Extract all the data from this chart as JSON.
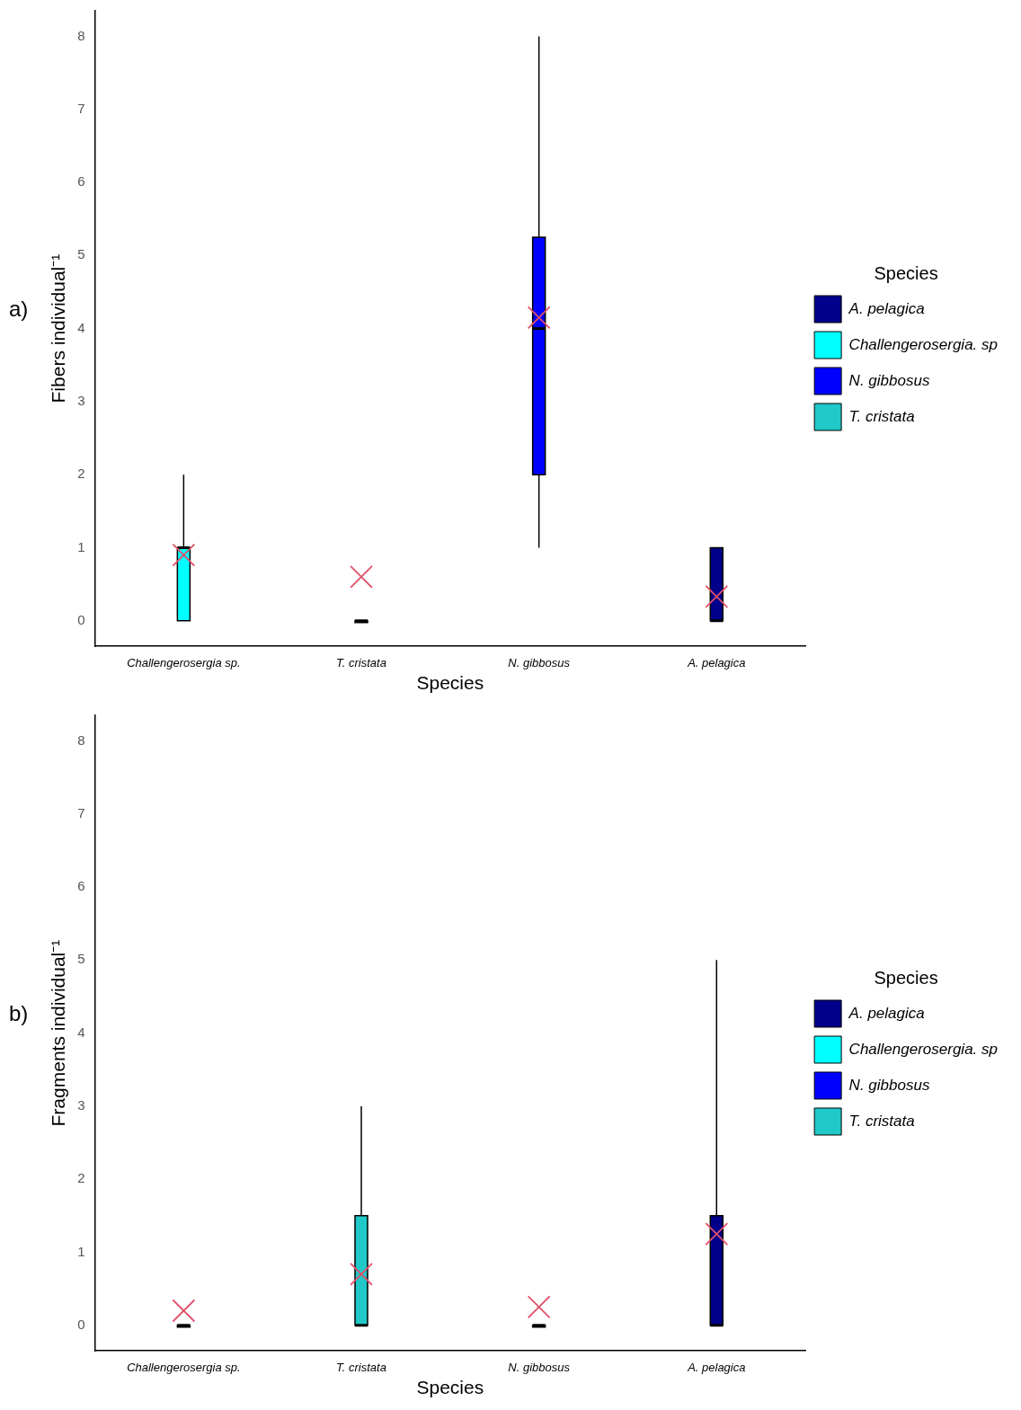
{
  "chart_data": [
    {
      "type": "box",
      "ylabel": "Fibers individual⁻¹",
      "xlabel": "Species",
      "legend_title": "Species",
      "legend": "right",
      "marker": "cross",
      "grid": false,
      "annotations": [
        "a)"
      ],
      "categories": [
        "Challengerosergia sp.",
        "T. cristata",
        "N. gibbosus",
        "A. pelagica"
      ],
      "ylim": [
        -0.35,
        8.35
      ],
      "yticks": [
        0,
        1,
        2,
        3,
        4,
        5,
        6,
        7,
        8
      ],
      "series": [
        {
          "name": "A. pelagica",
          "color": "#00008b",
          "boxes": [
            null,
            null,
            null,
            {
              "low": 0,
              "q1": 0,
              "median": 0,
              "q3": 1,
              "high": 1,
              "mean": 0.33
            }
          ]
        },
        {
          "name": "Challengerosergia. sp",
          "color": "#00ffff",
          "boxes": [
            {
              "low": 0,
              "q1": 0,
              "median": 1,
              "q3": 1,
              "high": 2,
              "mean": 0.9
            },
            null,
            null,
            null
          ]
        },
        {
          "name": "N. gibbosus",
          "color": "#0000ff",
          "boxes": [
            null,
            null,
            {
              "low": 1,
              "q1": 2,
              "median": 4,
              "q3": 5.25,
              "high": 8,
              "mean": 4.15
            },
            null
          ]
        },
        {
          "name": "T. cristata",
          "color": "#20c8c8",
          "boxes": [
            null,
            {
              "low": 0,
              "q1": 0,
              "median": 0,
              "q3": 0,
              "high": 0,
              "mean": 0.6
            },
            null,
            null
          ]
        }
      ]
    },
    {
      "type": "box",
      "ylabel": "Fragments individual⁻¹",
      "xlabel": "Species",
      "legend_title": "Species",
      "legend": "right",
      "marker": "cross",
      "grid": false,
      "annotations": [
        "b)"
      ],
      "categories": [
        "Challengerosergia sp.",
        "T. cristata",
        "N. gibbosus",
        "A. pelagica"
      ],
      "ylim": [
        -0.35,
        8.35
      ],
      "yticks": [
        0,
        1,
        2,
        3,
        4,
        5,
        6,
        7,
        8
      ],
      "series": [
        {
          "name": "A. pelagica",
          "color": "#00008b",
          "boxes": [
            null,
            null,
            null,
            {
              "low": 0,
              "q1": 0,
              "median": 0,
              "q3": 1.5,
              "high": 5,
              "mean": 1.25
            }
          ]
        },
        {
          "name": "Challengerosergia. sp",
          "color": "#00ffff",
          "boxes": [
            {
              "low": 0,
              "q1": 0,
              "median": 0,
              "q3": 0,
              "high": 0,
              "mean": 0.2
            },
            null,
            null,
            null
          ]
        },
        {
          "name": "N. gibbosus",
          "color": "#0000ff",
          "boxes": [
            null,
            null,
            {
              "low": 0,
              "q1": 0,
              "median": 0,
              "q3": 0,
              "high": 0,
              "mean": 0.25
            },
            null
          ]
        },
        {
          "name": "T. cristata",
          "color": "#20c8c8",
          "boxes": [
            null,
            {
              "low": 0,
              "q1": 0,
              "median": 0,
              "q3": 1.5,
              "high": 3,
              "mean": 0.7
            },
            null,
            null
          ]
        }
      ]
    }
  ]
}
